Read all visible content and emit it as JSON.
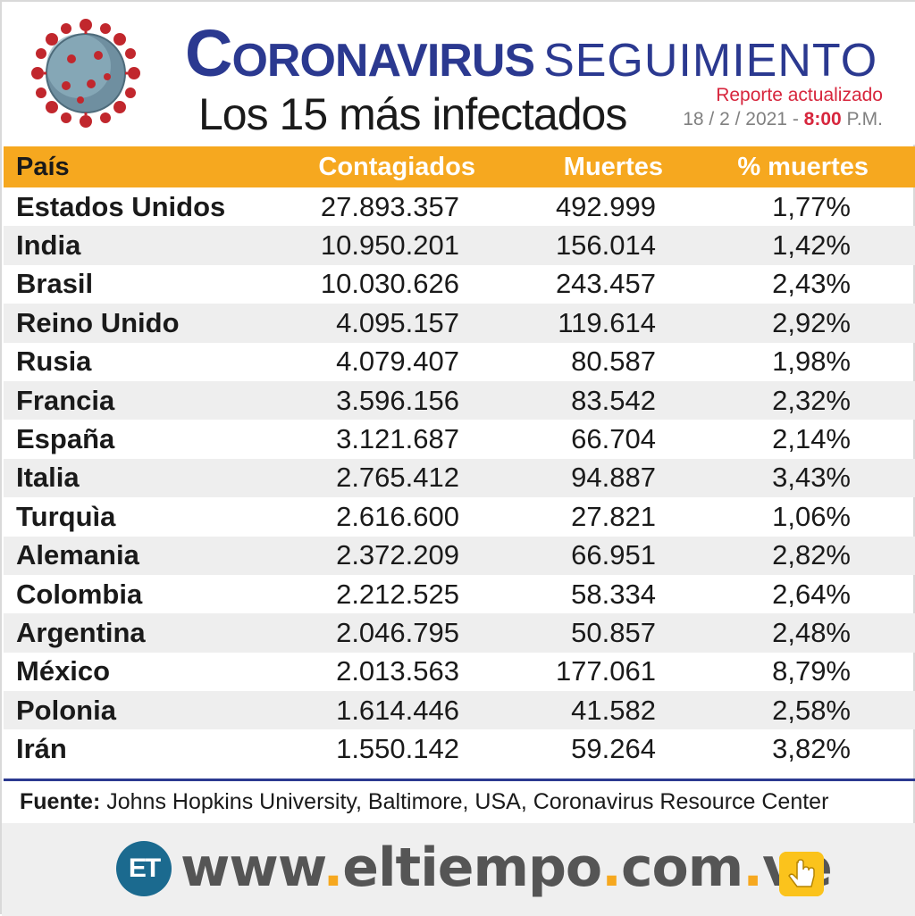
{
  "header": {
    "title_main": "Coronavirus",
    "title_sub": "SEGUIMIENTO",
    "subtitle_pre": "Los",
    "subtitle_num": "15",
    "subtitle_post": "más infectados",
    "report_label": "Reporte actualizado",
    "report_date": "18 / 2 / 2021 -",
    "report_time": "8:00",
    "report_ampm": "P.M."
  },
  "table": {
    "headers": [
      "País",
      "Contagiados",
      "Muertes",
      "% muertes"
    ],
    "rows": [
      [
        "Estados Unidos",
        "27.893.357",
        "492.999",
        "1,77%"
      ],
      [
        "India",
        "10.950.201",
        "156.014",
        "1,42%"
      ],
      [
        "Brasil",
        "10.030.626",
        "243.457",
        "2,43%"
      ],
      [
        "Reino Unido",
        "4.095.157",
        "119.614",
        "2,92%"
      ],
      [
        "Rusia",
        "4.079.407",
        "80.587",
        "1,98%"
      ],
      [
        "Francia",
        "3.596.156",
        "83.542",
        "2,32%"
      ],
      [
        "España",
        "3.121.687",
        "66.704",
        "2,14%"
      ],
      [
        "Italia",
        "2.765.412",
        "94.887",
        "3,43%"
      ],
      [
        "Turquìa",
        "2.616.600",
        "27.821",
        "1,06%"
      ],
      [
        "Alemania",
        "2.372.209",
        "66.951",
        "2,82%"
      ],
      [
        "Colombia",
        "2.212.525",
        "58.334",
        "2,64%"
      ],
      [
        "Argentina",
        "2.046.795",
        "50.857",
        "2,48%"
      ],
      [
        "México",
        "2.013.563",
        "177.061",
        "8,79%"
      ],
      [
        "Polonia",
        "1.614.446",
        "41.582",
        "2,58%"
      ],
      [
        "Irán",
        "1.550.142",
        "59.264",
        "3,82%"
      ]
    ]
  },
  "footer": {
    "source_label": "Fuente:",
    "source_text": "Johns Hopkins University, Baltimore, USA, Coronavirus Resource Center",
    "logo_text": "ET",
    "url_parts": [
      "www",
      ".",
      "eltiempo",
      ".",
      "com",
      ".",
      "ve"
    ],
    "icon": "hand-pointer-icon"
  },
  "colors": {
    "title_blue": "#2b3990",
    "header_orange": "#f6a81f",
    "accent_red": "#d7263d",
    "logo_blue": "#1b6a8f"
  }
}
